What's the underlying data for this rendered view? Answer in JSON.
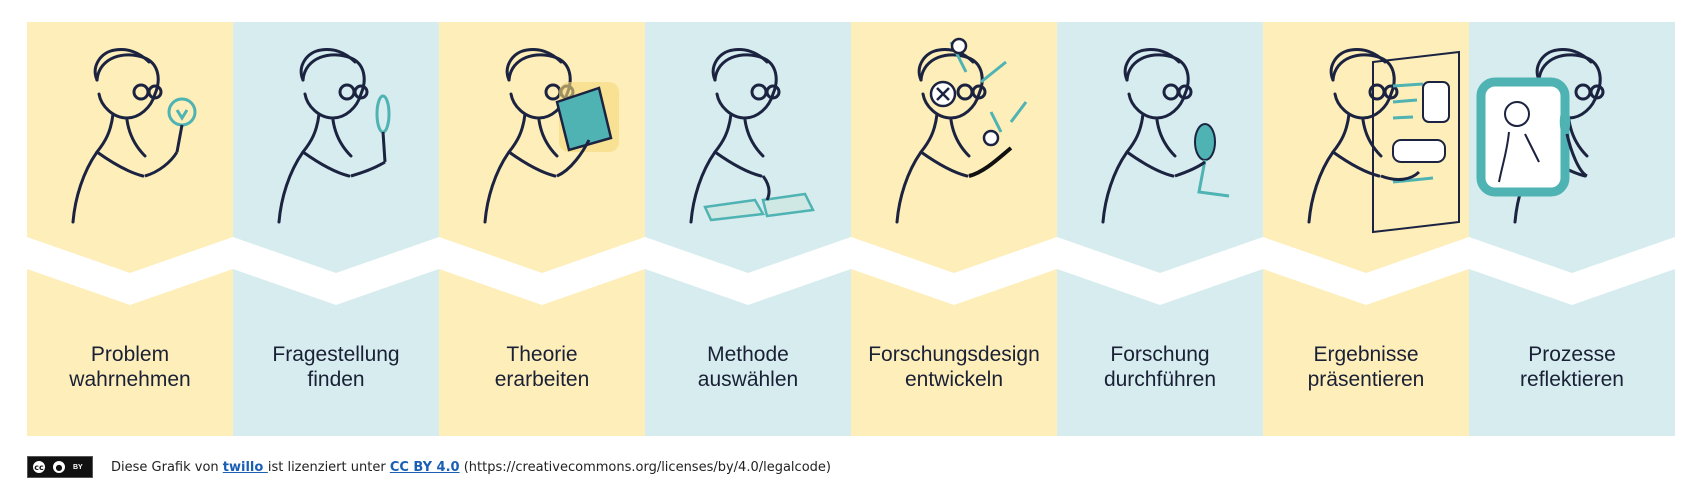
{
  "colors": {
    "yellow": "#fdeeba",
    "blue": "#d6ecee",
    "ink": "#1b2340",
    "teal": "#4fb3b3",
    "link": "#1a5fb4"
  },
  "steps": [
    {
      "line1": "Problem",
      "line2": "wahrnehmen",
      "bg": "yellow",
      "icon": "lightbulb-magnifier-person-icon"
    },
    {
      "line1": "Fragestellung",
      "line2": "finden",
      "bg": "blue",
      "icon": "magnifier-person-icon"
    },
    {
      "line1": "Theorie",
      "line2": "erarbeiten",
      "bg": "yellow",
      "icon": "book-person-icon"
    },
    {
      "line1": "Methode",
      "line2": "auswählen",
      "bg": "blue",
      "icon": "choosing-cards-person-icon"
    },
    {
      "line1": "Forschungsdesign",
      "line2": "entwickeln",
      "bg": "yellow",
      "icon": "drawing-diagram-person-icon"
    },
    {
      "line1": "Forschung",
      "line2": "durchführen",
      "bg": "blue",
      "icon": "microscope-person-icon"
    },
    {
      "line1": "Ergebnisse",
      "line2": "präsentieren",
      "bg": "yellow",
      "icon": "presentation-board-person-icon"
    },
    {
      "line1": "Prozesse",
      "line2": "reflektieren",
      "bg": "blue",
      "icon": "mirror-reflection-person-icon"
    }
  ],
  "footer": {
    "badge": "cc-by-badge-icon",
    "badge_cc": "cc",
    "badge_by": "BY",
    "text_before": "Diese Grafik von ",
    "author_link": "twillo ",
    "text_middle": " ist lizenziert unter ",
    "license_link": "CC BY 4.0",
    "text_after": " (https://creativecommons.org/licenses/by/4.0/legalcode)"
  }
}
